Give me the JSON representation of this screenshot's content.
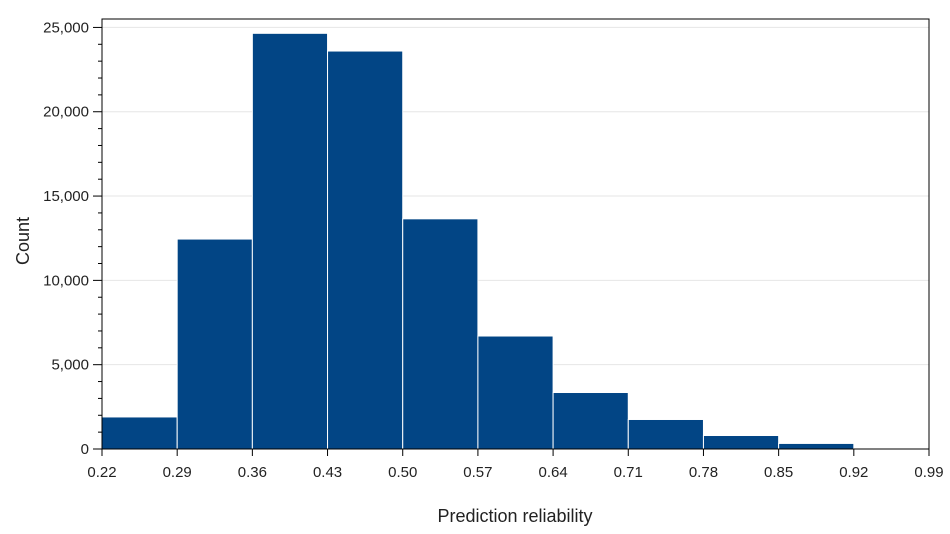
{
  "chart_data": {
    "type": "bar",
    "title": "",
    "xlabel": "Prediction reliability",
    "ylabel": "Count",
    "bin_edges": [
      0.22,
      0.29,
      0.36,
      0.43,
      0.5,
      0.57,
      0.64,
      0.71,
      0.78,
      0.85,
      0.92,
      0.99
    ],
    "x_tick_labels": [
      "0.22",
      "0.29",
      "0.36",
      "0.43",
      "0.50",
      "0.57",
      "0.64",
      "0.71",
      "0.78",
      "0.85",
      "0.92",
      "0.99"
    ],
    "values": [
      1900,
      12450,
      24650,
      23600,
      13650,
      6700,
      3350,
      1750,
      800,
      330,
      30
    ],
    "y_ticks": [
      0,
      5000,
      10000,
      15000,
      20000,
      25000
    ],
    "y_tick_labels": [
      "0",
      "5,000",
      "10,000",
      "15,000",
      "20,000",
      "25,000"
    ],
    "xlim": [
      0.22,
      0.99
    ],
    "ylim": [
      0,
      25500
    ],
    "y_minor_tick_step": 1000,
    "grid": "horizontal",
    "legend": "none",
    "colors": {
      "bar": "#024585",
      "bar_edge": "#ffffff",
      "grid": "#e6e6e6",
      "axis": "#000000"
    }
  }
}
